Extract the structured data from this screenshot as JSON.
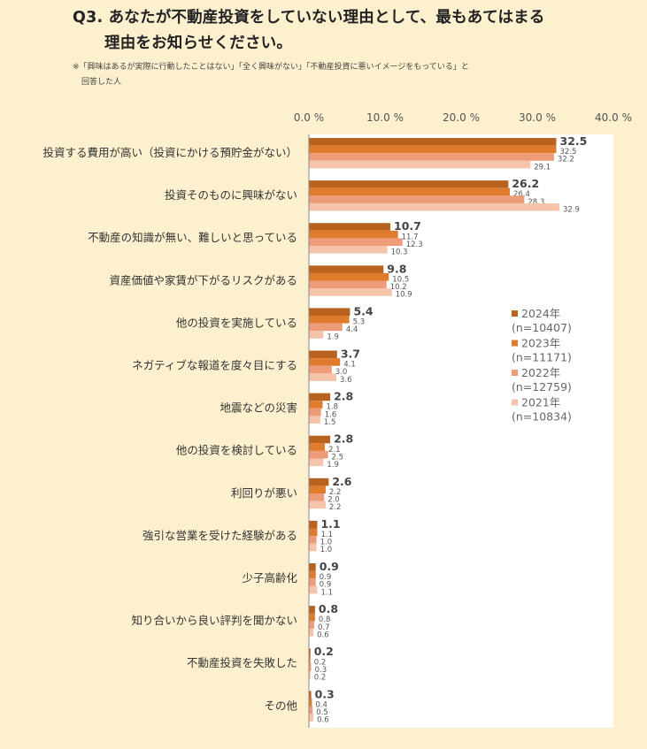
{
  "title_line1": "Q3. あなたが不動産投資をしていない理由として、最もあてはまる",
  "title_line2": "理由をお知らせください。",
  "note_line1": "※「興味はあるが実際に行動したことはない」「全く興味がない」「不動産投資に悪いイメージをもっている」と",
  "note_line2": "回答した人",
  "chart_data": {
    "type": "bar",
    "orientation": "horizontal",
    "categories": [
      "投資する費用が高い（投資にかける預貯金がない）",
      "投資そのものに興味がない",
      "不動産の知識が無い、難しいと思っている",
      "資産価値や家賃が下がるリスクがある",
      "他の投資を実施している",
      "ネガティブな報道を度々目にする",
      "地震などの災害",
      "他の投資を検討している",
      "利回りが悪い",
      "強引な営業を受けた経験がある",
      "少子高齢化",
      "知り合いから良い評判を聞かない",
      "不動産投資を失敗した",
      "その他"
    ],
    "series": [
      {
        "name": "2024年",
        "n_label": "(n=10407)",
        "color": "#b8621f",
        "values": [
          32.5,
          26.2,
          10.7,
          9.8,
          5.4,
          3.7,
          2.8,
          2.8,
          2.6,
          1.1,
          0.9,
          0.8,
          0.2,
          0.3
        ]
      },
      {
        "name": "2023年",
        "n_label": "(n=11171)",
        "color": "#e07b2e",
        "values": [
          32.5,
          26.4,
          11.7,
          10.5,
          5.3,
          4.1,
          1.8,
          2.1,
          2.2,
          1.1,
          0.9,
          0.8,
          0.2,
          0.4
        ]
      },
      {
        "name": "2022年",
        "n_label": "(n=12759)",
        "color": "#ee9c78",
        "values": [
          32.2,
          28.3,
          12.3,
          10.2,
          4.4,
          3.0,
          1.6,
          2.5,
          2.0,
          1.0,
          0.9,
          0.7,
          0.3,
          0.5
        ]
      },
      {
        "name": "2021年",
        "n_label": "(n=10834)",
        "color": "#f6c4ab",
        "values": [
          29.1,
          32.9,
          10.3,
          10.9,
          1.9,
          3.6,
          1.5,
          1.9,
          2.2,
          1.0,
          1.1,
          0.6,
          0.2,
          0.6
        ]
      }
    ],
    "x_ticks": [
      "0.0 %",
      "10.0 %",
      "20.0 %",
      "30.0 %",
      "40.0 %"
    ],
    "xlim": [
      0,
      40
    ],
    "legend_position": "right",
    "grid": false
  }
}
